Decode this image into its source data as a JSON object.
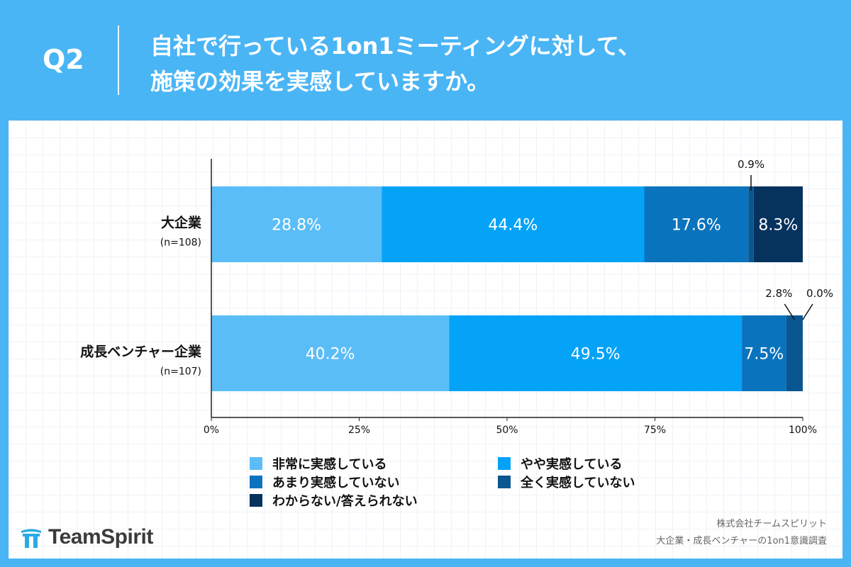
{
  "header": {
    "q_label": "Q2",
    "question_line1": "自社で行っている1on1ミーティングに対して、",
    "question_line2": "施策の効果を実感していますか。"
  },
  "colors": {
    "background": "#4ab5f5",
    "card": "#ffffff",
    "series": [
      "#5bbdf7",
      "#04a3f7",
      "#0a73bd",
      "#0a5690",
      "#06325e"
    ]
  },
  "chart_data": {
    "type": "bar",
    "orientation": "horizontal",
    "stacked": true,
    "categories": [
      {
        "name": "大企業",
        "n": "(n=108)"
      },
      {
        "name": "成長ベンチャー企業",
        "n": "(n=107)"
      }
    ],
    "series": [
      {
        "name": "非常に実感している",
        "values": [
          28.8,
          40.2
        ]
      },
      {
        "name": "やや実感している",
        "values": [
          44.4,
          49.5
        ]
      },
      {
        "name": "あまり実感していない",
        "values": [
          17.6,
          7.5
        ]
      },
      {
        "name": "全く実感していない",
        "values": [
          0.9,
          2.8
        ]
      },
      {
        "name": "わからない/答えられない",
        "values": [
          8.3,
          0.0
        ]
      }
    ],
    "value_labels": [
      [
        "28.8%",
        "44.4%",
        "17.6%",
        "0.9%",
        "8.3%"
      ],
      [
        "40.2%",
        "49.5%",
        "7.5%",
        "2.8%",
        "0.0%"
      ]
    ],
    "xlim": [
      0,
      100
    ],
    "x_ticks": [
      {
        "value": 0,
        "label": "0%"
      },
      {
        "value": 25,
        "label": "25%"
      },
      {
        "value": 50,
        "label": "50%"
      },
      {
        "value": 75,
        "label": "75%"
      },
      {
        "value": 100,
        "label": "100%"
      }
    ],
    "legend_position": "bottom",
    "grid": false
  },
  "brand": {
    "logo_text": "TeamSpirit"
  },
  "source": {
    "line1": "株式会社チームスピリット",
    "line2": "大企業・成長ベンチャーの1on1意識調査"
  }
}
